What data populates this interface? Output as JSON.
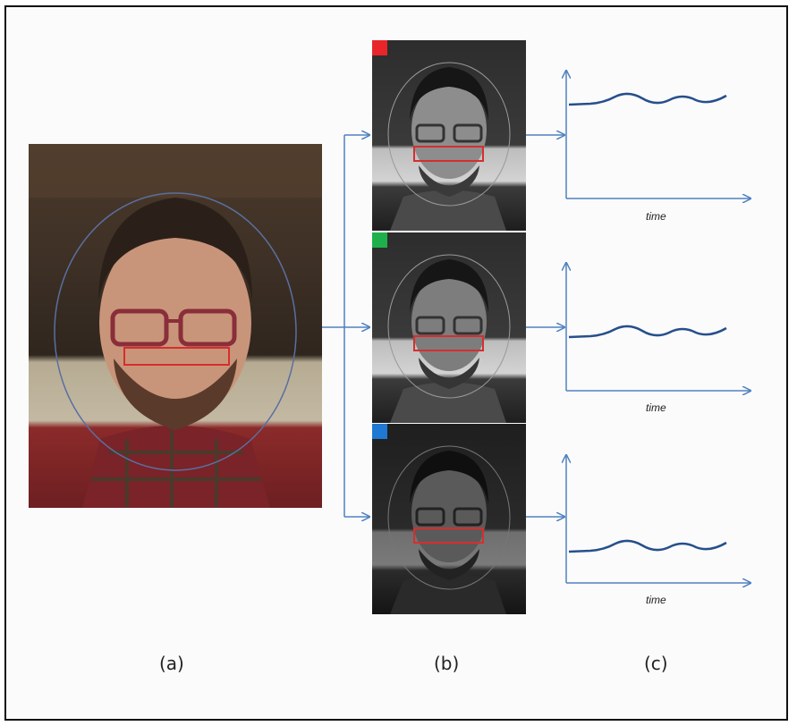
{
  "colors": {
    "red_channel": "#e8262a",
    "green_channel": "#1fb04b",
    "blue_channel": "#1f78d1",
    "arrow": "#4f81c0",
    "signal": "#264f8c",
    "roi": "#d62e2e"
  },
  "panels": {
    "a": {
      "label": "(a)"
    },
    "b": {
      "label": "(b)"
    },
    "c": {
      "label": "(c)"
    }
  },
  "plots": [
    {
      "axis_label": "time"
    },
    {
      "axis_label": "time"
    },
    {
      "axis_label": "time"
    }
  ]
}
